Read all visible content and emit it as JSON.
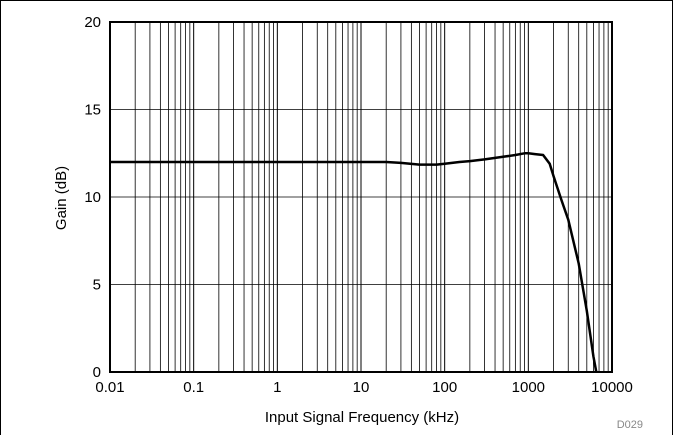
{
  "chart_data": {
    "type": "line",
    "xlabel": "Input Signal Frequency (kHz)",
    "ylabel": "Gain (dB)",
    "x_scale": "log",
    "xlim": [
      0.01,
      10000
    ],
    "ylim": [
      0,
      20
    ],
    "x_ticks": [
      0.01,
      0.1,
      1,
      10,
      100,
      1000,
      10000
    ],
    "x_tick_labels": [
      "0.01",
      "0.1",
      "1",
      "10",
      "100",
      "1000",
      "10000"
    ],
    "y_ticks": [
      0,
      5,
      10,
      15,
      20
    ],
    "y_tick_labels": [
      "0",
      "5",
      "10",
      "15",
      "20"
    ],
    "grid": true,
    "line_color": "#000000",
    "code": "D029",
    "series": [
      {
        "x": [
          0.01,
          0.1,
          1,
          10,
          20,
          30,
          50,
          80,
          100,
          150,
          200,
          300,
          500,
          700,
          900,
          1000,
          1200,
          1500,
          1800,
          2000,
          2500,
          3000,
          4000,
          5000,
          6000,
          6500
        ],
        "y": [
          12.0,
          12.0,
          12.0,
          12.0,
          12.0,
          11.95,
          11.85,
          11.85,
          11.9,
          12.0,
          12.05,
          12.15,
          12.3,
          12.4,
          12.5,
          12.5,
          12.45,
          12.4,
          11.9,
          11.2,
          9.8,
          8.7,
          6.2,
          3.5,
          0.9,
          0
        ]
      }
    ]
  }
}
